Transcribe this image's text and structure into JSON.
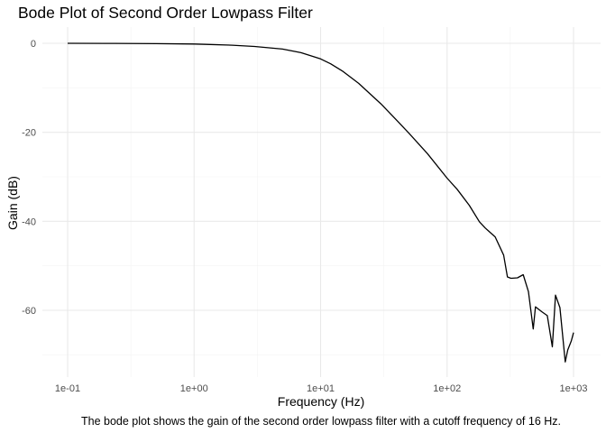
{
  "chart_data": {
    "type": "line",
    "title": "Bode Plot of Second Order Lowpass Filter",
    "xlabel": "Frequency (Hz)",
    "ylabel": "Gain (dB)",
    "caption": "The bode plot shows the gain of the second order lowpass filter with a cutoff frequency of 16 Hz.",
    "x_scale": "log10",
    "xlim": [
      0.1,
      1000
    ],
    "ylim": [
      -73,
      1.5
    ],
    "x_ticks": [
      {
        "value": 0.1,
        "label": "1e-01"
      },
      {
        "value": 1,
        "label": "1e+00"
      },
      {
        "value": 10,
        "label": "1e+01"
      },
      {
        "value": 100,
        "label": "1e+02"
      },
      {
        "value": 1000,
        "label": "1e+03"
      }
    ],
    "y_ticks": [
      {
        "value": 0,
        "label": "0"
      },
      {
        "value": -20,
        "label": "-20"
      },
      {
        "value": -40,
        "label": "-40"
      },
      {
        "value": -60,
        "label": "-60"
      }
    ],
    "grid": true,
    "legend": "none",
    "line_color": "#000000",
    "series": [
      {
        "x": [
          0.1,
          0.2,
          0.5,
          1,
          2,
          3,
          5,
          7,
          10,
          12,
          15,
          20,
          30,
          40,
          50,
          70,
          100,
          120,
          150,
          180,
          200,
          240,
          280,
          300,
          320,
          360,
          400,
          440,
          480,
          500,
          560,
          620,
          680,
          720,
          780,
          860,
          900,
          960,
          1000
        ],
        "y": [
          0,
          -0.02,
          -0.08,
          -0.17,
          -0.42,
          -0.7,
          -1.3,
          -2.1,
          -3.5,
          -4.6,
          -6.3,
          -9,
          -13.6,
          -17.3,
          -20.2,
          -24.8,
          -30.3,
          -32.8,
          -36.4,
          -40.1,
          -41.5,
          -43.5,
          -47.6,
          -52.5,
          -52.8,
          -52.7,
          -52,
          -55.8,
          -64.2,
          -59.2,
          -60.3,
          -61.2,
          -68.2,
          -56.6,
          -59.4,
          -71.6,
          -68.9,
          -66.9,
          -65
        ]
      }
    ]
  }
}
